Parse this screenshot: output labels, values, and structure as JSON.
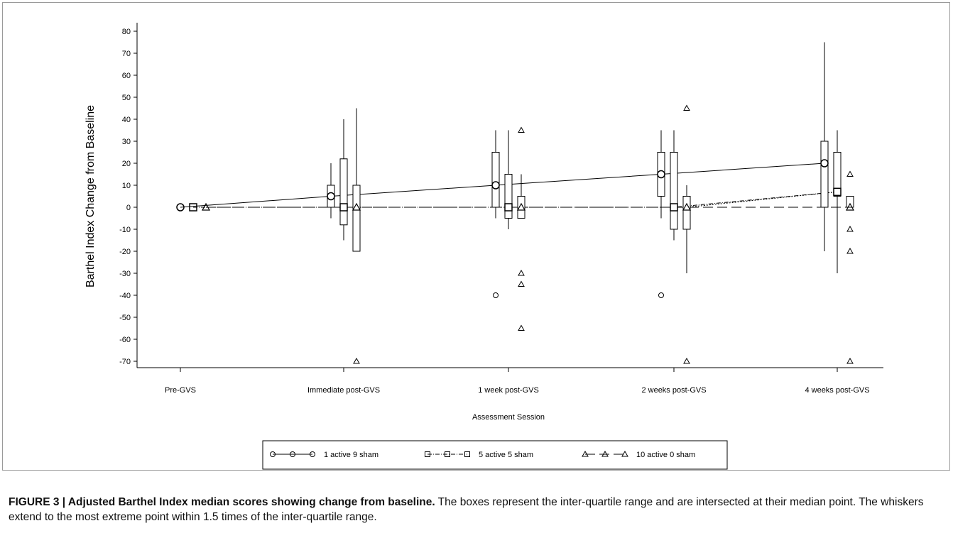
{
  "chart_data": {
    "type": "box",
    "title": "",
    "xlabel": "Assessment Session",
    "ylabel": "Barthel Index Change from Baseline",
    "ylim": [
      -70,
      80
    ],
    "yticks": [
      80,
      70,
      60,
      50,
      40,
      30,
      20,
      10,
      0,
      -10,
      -20,
      -30,
      -40,
      -50,
      -60,
      -70
    ],
    "categories": [
      "Pre-GVS",
      "Immediate post-GVS",
      "1 week post-GVS",
      "2 weeks post-GVS",
      "4 weeks post-GVS"
    ],
    "legend_position": "bottom-center",
    "series": [
      {
        "name": "1 active 9 sham",
        "marker": "circle",
        "line_style": "solid",
        "medians": [
          0,
          5,
          10,
          15,
          20
        ],
        "boxes": [
          null,
          {
            "q1": 0,
            "median": 5,
            "q3": 10,
            "whisker_low": -5,
            "whisker_high": 20
          },
          {
            "q1": 0,
            "median": 10,
            "q3": 25,
            "whisker_low": -5,
            "whisker_high": 35
          },
          {
            "q1": 5,
            "median": 15,
            "q3": 25,
            "whisker_low": -5,
            "whisker_high": 35
          },
          {
            "q1": 0,
            "median": 20,
            "q3": 30,
            "whisker_low": -20,
            "whisker_high": 75
          }
        ],
        "outliers": [
          [],
          [],
          [
            -40
          ],
          [
            -40
          ],
          []
        ]
      },
      {
        "name": "5 active 5 sham",
        "marker": "square",
        "line_style": "dash-dot",
        "medians": [
          0,
          0,
          0,
          0,
          7
        ],
        "boxes": [
          null,
          {
            "q1": -8,
            "median": 0,
            "q3": 22,
            "whisker_low": -15,
            "whisker_high": 40
          },
          {
            "q1": -5,
            "median": 0,
            "q3": 15,
            "whisker_low": -10,
            "whisker_high": 35
          },
          {
            "q1": -10,
            "median": 0,
            "q3": 25,
            "whisker_low": -15,
            "whisker_high": 35
          },
          {
            "q1": 5,
            "median": 7,
            "q3": 25,
            "whisker_low": -30,
            "whisker_high": 35
          }
        ],
        "outliers": [
          [],
          [],
          [],
          [],
          []
        ]
      },
      {
        "name": "10 active 0 sham",
        "marker": "triangle",
        "line_style": "dashed",
        "medians": [
          0,
          0,
          0,
          0,
          0
        ],
        "boxes": [
          null,
          {
            "q1": -20,
            "median": 0,
            "q3": 10,
            "whisker_low": -20,
            "whisker_high": 45
          },
          {
            "q1": -5,
            "median": 0,
            "q3": 5,
            "whisker_low": -5,
            "whisker_high": 15
          },
          {
            "q1": -10,
            "median": 0,
            "q3": 5,
            "whisker_low": -30,
            "whisker_high": 10
          },
          {
            "q1": 0,
            "median": 0,
            "q3": 5,
            "whisker_low": 0,
            "whisker_high": 5
          }
        ],
        "outliers": [
          [],
          [
            -70
          ],
          [
            35,
            -30,
            -35,
            -55
          ],
          [
            45,
            -70
          ],
          [
            15,
            -10,
            -20,
            -70
          ]
        ]
      }
    ],
    "extra_lines": [
      {
        "series": "5 active 5 sham",
        "line_style": "dotted",
        "from": {
          "category": "2 weeks post-GVS",
          "y": 0
        },
        "to": {
          "category": "4 weeks post-GVS",
          "y": 7
        }
      }
    ]
  },
  "caption": {
    "label": "FIGURE 3 | Adjusted Barthel Index median scores showing change from baseline.",
    "text": " The boxes represent the inter-quartile range and are intersected at their median point. The whiskers extend to the most extreme point within 1.5 times of the inter-quartile range."
  }
}
